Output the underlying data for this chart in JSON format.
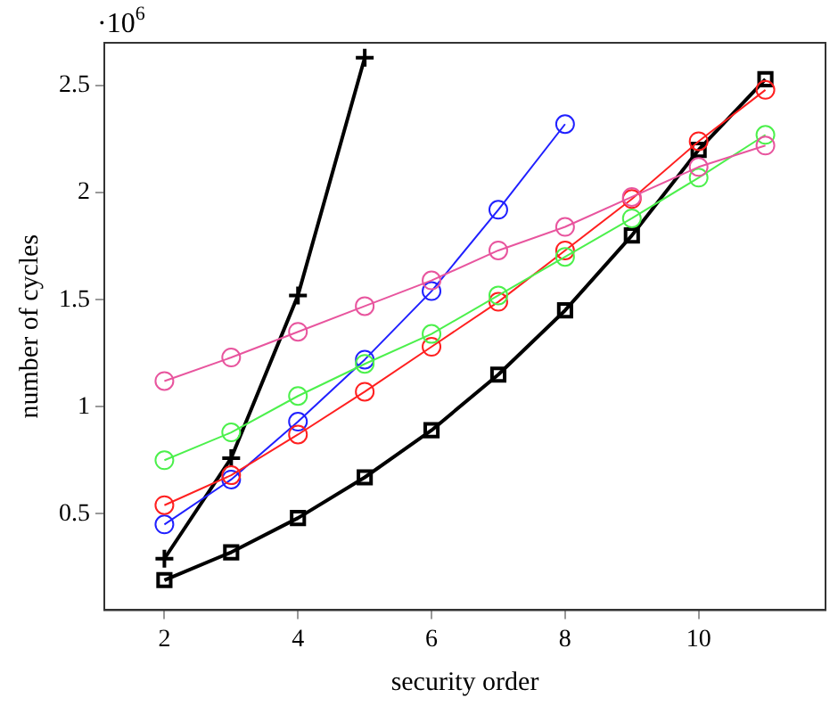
{
  "chart_data": {
    "type": "line",
    "xlabel": "security order",
    "ylabel": "number of cycles",
    "annotations": [
      "·10$^{6}$"
    ],
    "x": [
      2,
      3,
      4,
      5,
      6,
      7,
      8,
      9,
      10,
      11
    ],
    "xlim": [
      1.1,
      11.9
    ],
    "xticks": [
      2,
      4,
      6,
      8,
      10
    ],
    "ylim": [
      0.05,
      2.7
    ],
    "yticks": [
      0.5,
      1,
      1.5,
      2,
      2.5
    ],
    "grid": false,
    "legend": false,
    "series": [
      {
        "color": "#e8559e",
        "marker": "circle",
        "values": [
          1.12,
          1.23,
          1.35,
          1.47,
          1.59,
          1.73,
          1.84,
          1.98,
          2.12,
          2.22
        ]
      },
      {
        "color": "#4cf04c",
        "marker": "circle",
        "values": [
          0.75,
          0.88,
          1.05,
          1.2,
          1.34,
          1.52,
          1.7,
          1.88,
          2.07,
          2.27
        ]
      },
      {
        "color": "#ff2020",
        "marker": "circle",
        "values": [
          0.54,
          0.68,
          0.87,
          1.07,
          1.28,
          1.49,
          1.73,
          1.97,
          2.24,
          2.48
        ]
      },
      {
        "color": "#2020ff",
        "marker": "circle",
        "values": [
          0.45,
          0.66,
          0.93,
          1.22,
          1.54,
          1.92,
          2.32,
          null,
          null,
          null
        ]
      },
      {
        "color": "#000000",
        "marker": "cross",
        "values": [
          0.29,
          0.76,
          1.52,
          2.63,
          null,
          null,
          null,
          null,
          null,
          null
        ]
      },
      {
        "color": "#000000",
        "marker": "square",
        "values": [
          0.19,
          0.32,
          0.48,
          0.67,
          0.89,
          1.15,
          1.45,
          1.8,
          2.2,
          2.53
        ]
      }
    ]
  }
}
